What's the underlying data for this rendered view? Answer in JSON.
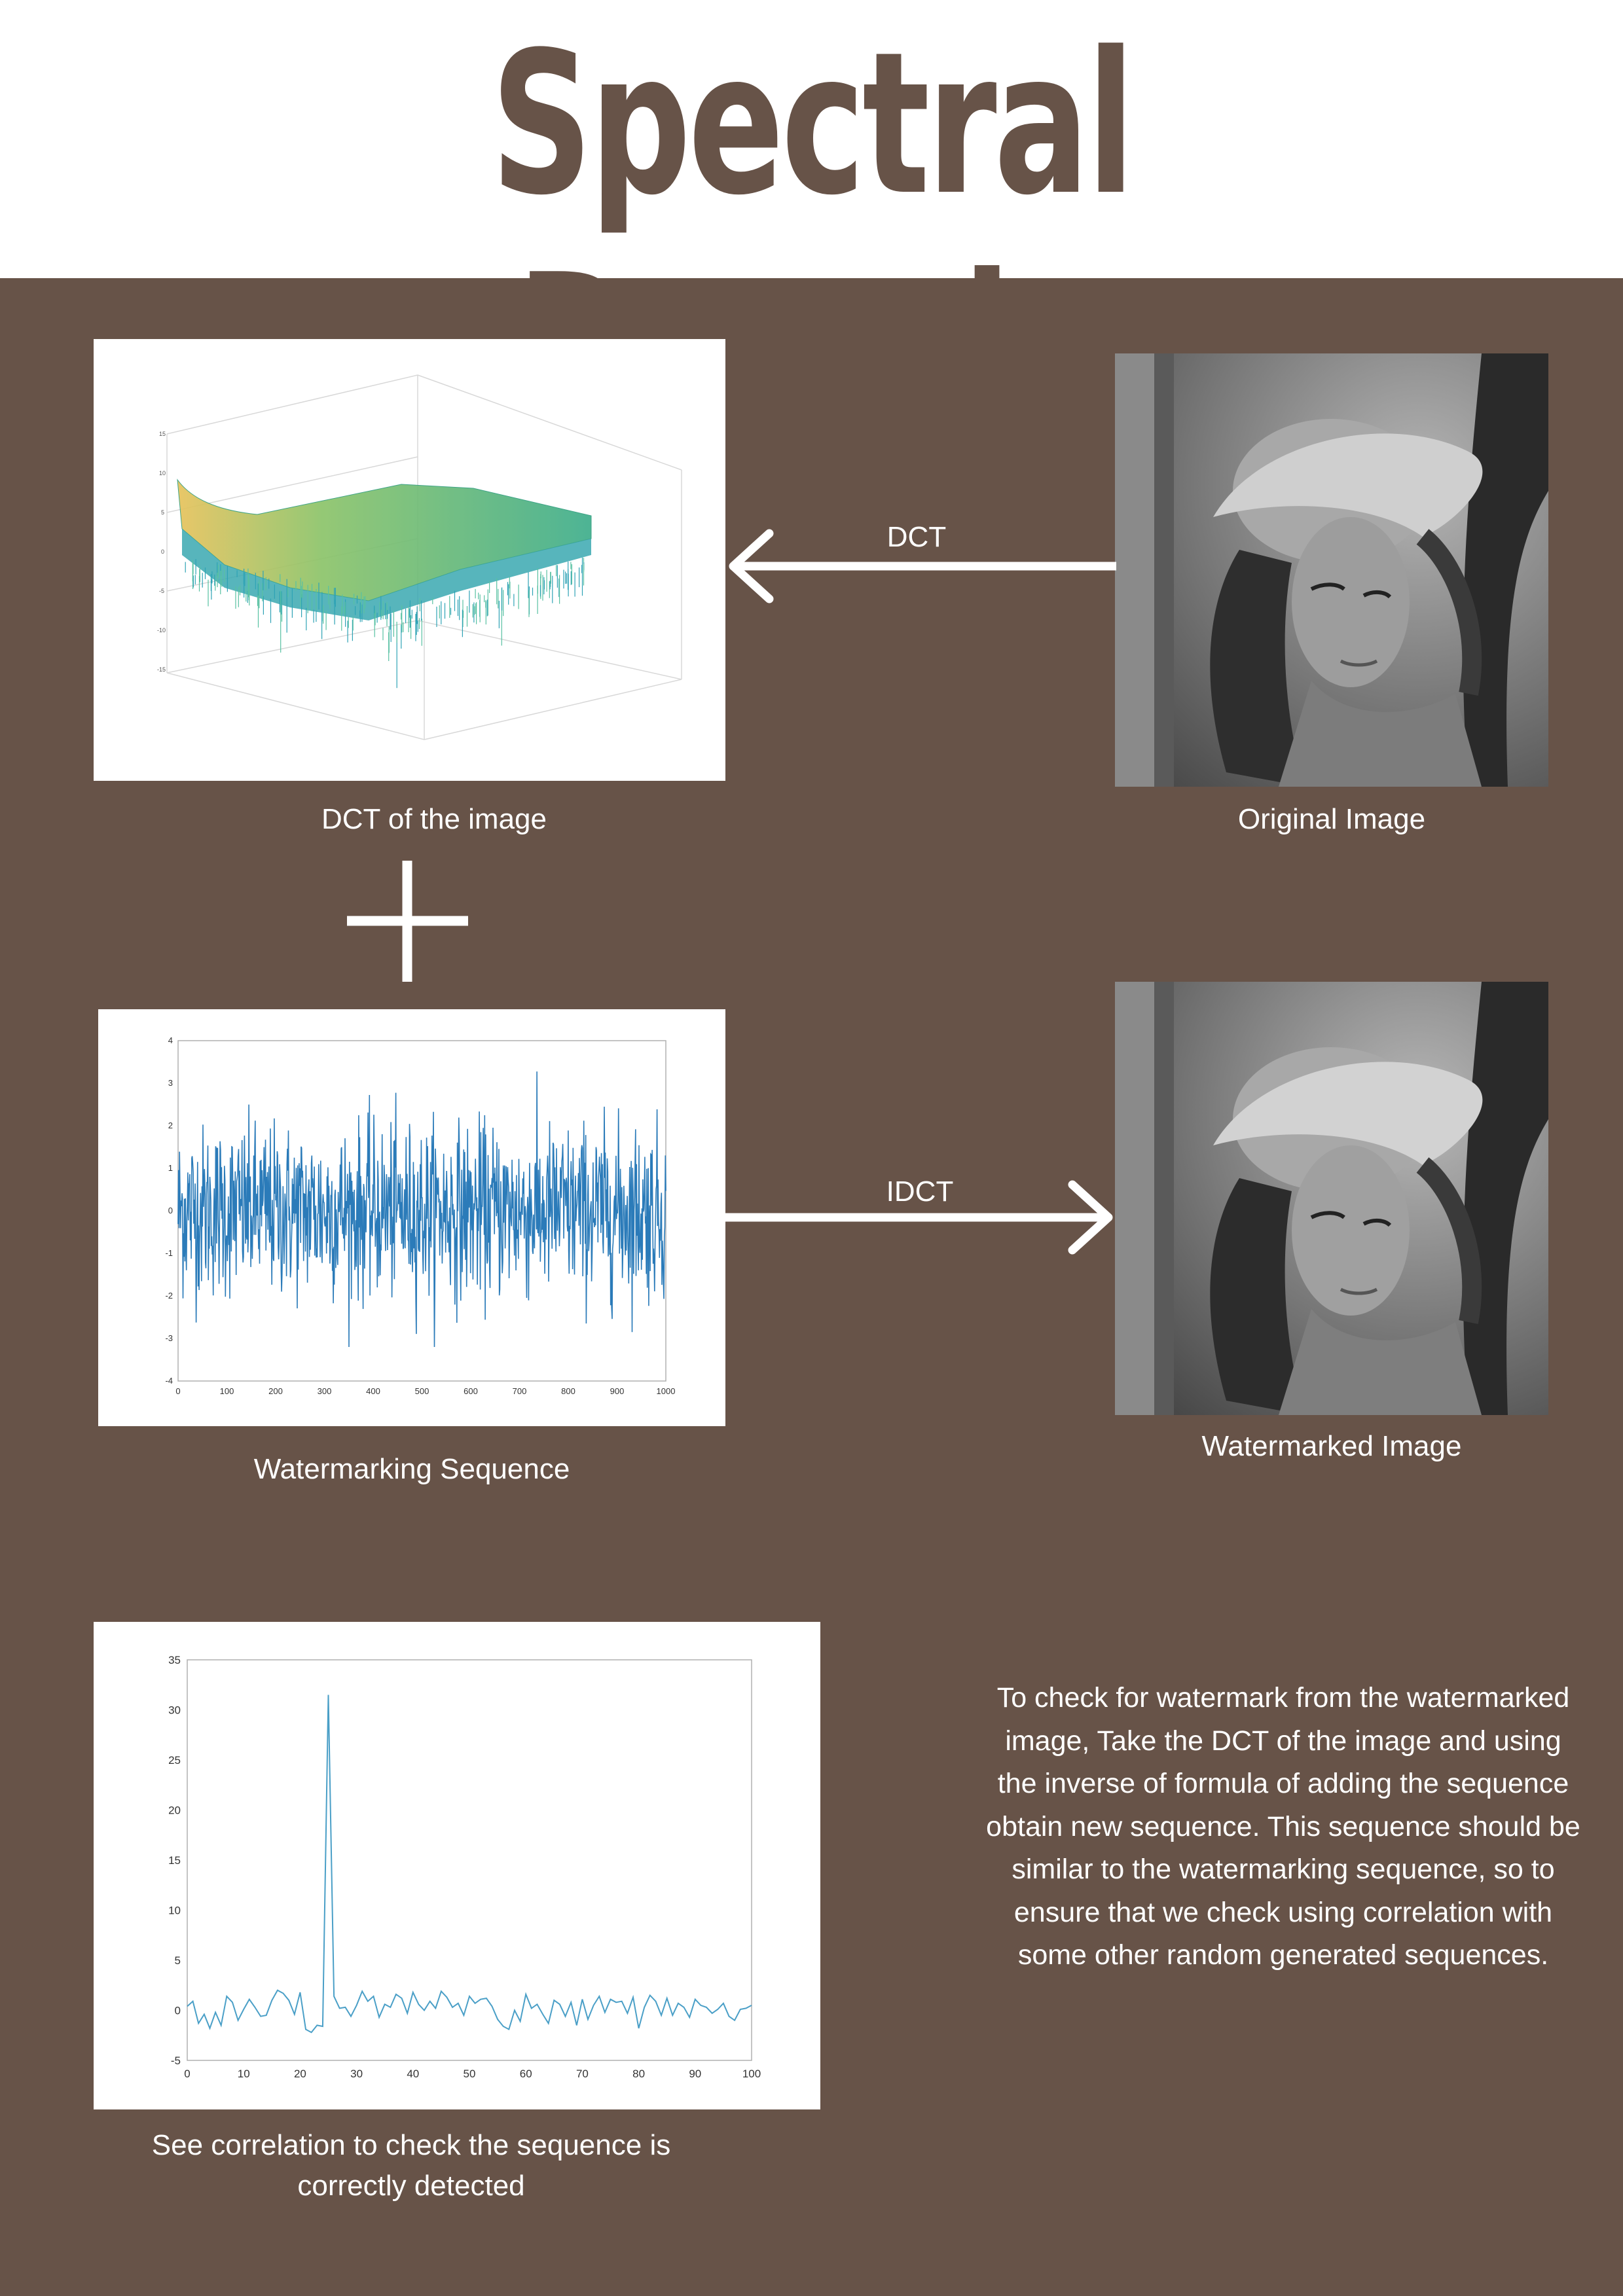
{
  "title": "Spectral Domain",
  "colors": {
    "panel": "#675348",
    "title": "#675348",
    "text": "#ffffff",
    "line": "#2b7bb9",
    "surface_top": "#e7c35c",
    "surface_mid": "#4fb58a"
  },
  "arrows": {
    "dct_label": "DCT",
    "idct_label": "IDCT"
  },
  "captions": {
    "dct_image": "DCT of the image",
    "original_image": "Original Image",
    "watermark_sequence": "Watermarking Sequence",
    "watermarked_image": "Watermarked Image",
    "correlation": "See correlation to check the sequence is correctly detected"
  },
  "icons": {
    "plus": "plus-icon",
    "arrow_left": "arrow-left-icon",
    "arrow_right": "arrow-right-icon"
  },
  "body_text": "To check for watermark from the watermarked image, Take the DCT of the image and using the inverse of formula of adding the sequence obtain new sequence. This sequence should be similar to the watermarking sequence, so to ensure that we check using correlation with some other random generated sequences.",
  "chart_data": [
    {
      "type": "line",
      "name": "watermark-sequence-plot",
      "x_range": [
        0,
        1000
      ],
      "ylim": [
        -4,
        4
      ],
      "x_ticks": [
        "0",
        "100",
        "200",
        "300",
        "400",
        "500",
        "600",
        "700",
        "800",
        "900",
        "1000"
      ],
      "y_ticks": [
        "4",
        "3",
        "2",
        "1",
        "0",
        "-1",
        "-2",
        "-3",
        "-4"
      ],
      "n_points": 1000,
      "values_summary": "approximately standard normal random noise, mean 0, range about -3.2 to 3.6"
    },
    {
      "type": "line",
      "name": "correlation-plot",
      "xlim": [
        0,
        100
      ],
      "ylim": [
        -5,
        35
      ],
      "x_ticks": [
        "0",
        "10",
        "20",
        "30",
        "40",
        "50",
        "60",
        "70",
        "80",
        "90",
        "100"
      ],
      "y_ticks": [
        "35",
        "30",
        "25",
        "20",
        "15",
        "10",
        "5",
        "0",
        "-5"
      ],
      "x": [
        0,
        1,
        2,
        3,
        4,
        5,
        6,
        7,
        8,
        9,
        10,
        11,
        12,
        13,
        14,
        15,
        16,
        17,
        18,
        19,
        20,
        21,
        22,
        23,
        24,
        25,
        26,
        27,
        28,
        29,
        30,
        31,
        32,
        33,
        34,
        35,
        36,
        37,
        38,
        39,
        40,
        41,
        42,
        43,
        44,
        45,
        46,
        47,
        48,
        49,
        50,
        51,
        52,
        53,
        54,
        55,
        56,
        57,
        58,
        59,
        60,
        61,
        62,
        63,
        64,
        65,
        66,
        67,
        68,
        69,
        70,
        71,
        72,
        73,
        74,
        75,
        76,
        77,
        78,
        79,
        80,
        81,
        82,
        83,
        84,
        85,
        86,
        87,
        88,
        89,
        90,
        91,
        92,
        93,
        94,
        95,
        96,
        97,
        98,
        99,
        100
      ],
      "y": [
        0.4,
        0.9,
        -1.3,
        -0.4,
        -1.8,
        -0.2,
        -1.5,
        1.4,
        0.8,
        -1.0,
        0.1,
        1.1,
        0.3,
        -0.6,
        -0.5,
        1.0,
        2.0,
        1.7,
        1.0,
        -0.4,
        1.8,
        -1.9,
        -2.2,
        -1.5,
        -1.6,
        31.5,
        1.4,
        0.2,
        0.3,
        -0.6,
        0.5,
        1.9,
        0.9,
        1.4,
        -0.7,
        0.6,
        0.3,
        1.6,
        1.2,
        -0.3,
        1.8,
        0.6,
        0.0,
        0.9,
        0.2,
        1.9,
        1.3,
        0.3,
        0.7,
        -0.5,
        1.4,
        0.7,
        1.1,
        1.2,
        0.4,
        -0.9,
        -1.6,
        -1.9,
        0.0,
        -1.1,
        1.6,
        0.2,
        0.6,
        -0.4,
        -1.3,
        1.0,
        0.6,
        -0.6,
        0.8,
        -1.5,
        1.1,
        -0.9,
        0.5,
        1.4,
        -0.2,
        1.1,
        0.8,
        0.9,
        -0.3,
        1.3,
        -1.8,
        0.3,
        1.5,
        0.9,
        -0.5,
        1.2,
        -0.5,
        0.7,
        0.3,
        -0.7,
        1.1,
        0.5,
        0.3,
        -0.3,
        0.1,
        0.7,
        -0.6,
        -1.0,
        0.1,
        0.2,
        0.5
      ]
    },
    {
      "type": "surface",
      "name": "dct-surface-plot",
      "x_range": [
        0,
        600
      ],
      "y_range": [
        0,
        600
      ],
      "z_ticks": [
        "15",
        "10",
        "5",
        "0",
        "-5",
        "-10",
        "-15"
      ],
      "values_summary": "log-magnitude DCT coefficients, peak near origin (~10) decaying to a flat noisy plane near 0"
    }
  ]
}
